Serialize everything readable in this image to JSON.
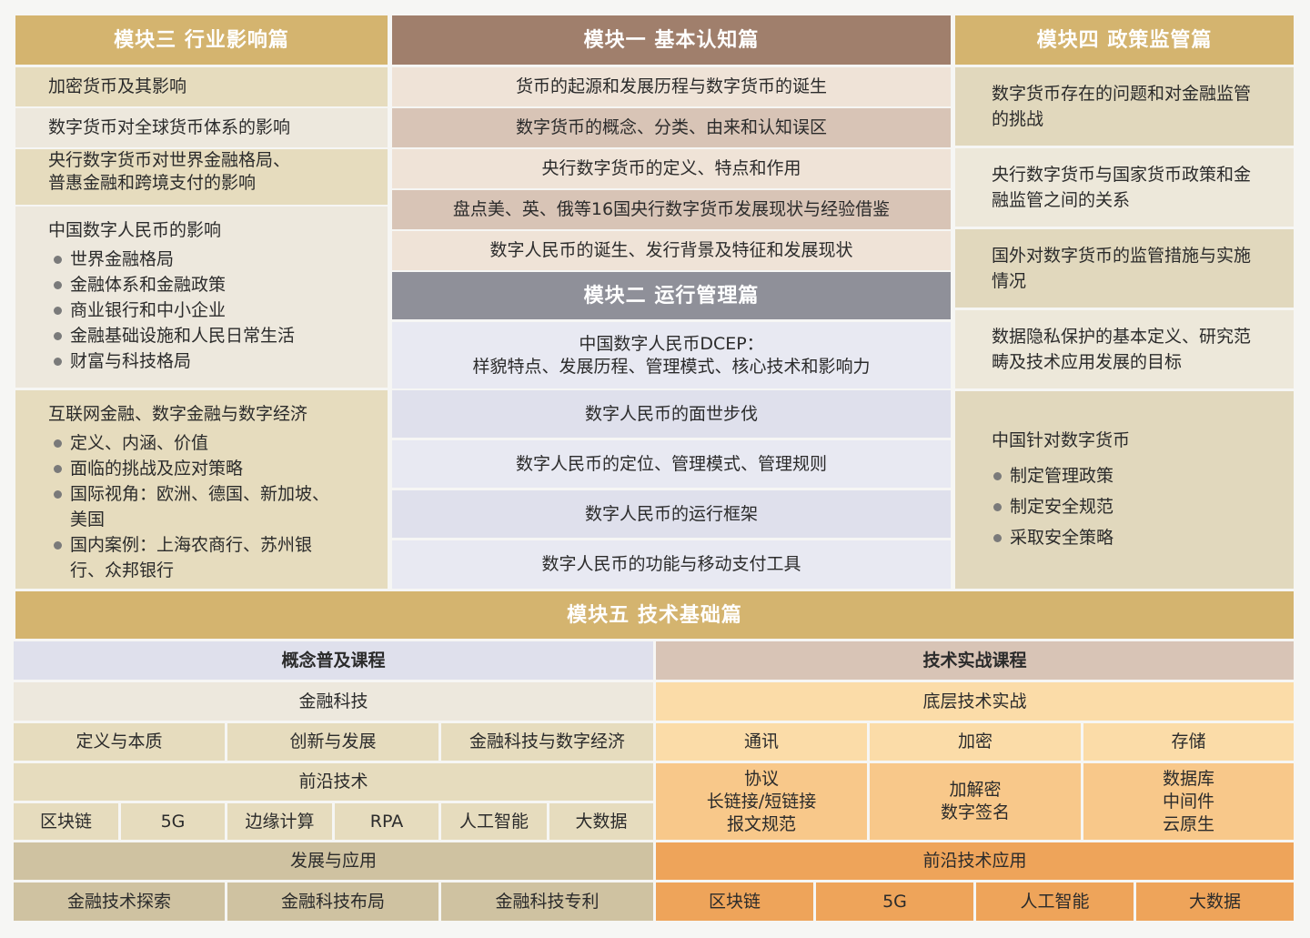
{
  "colors": {
    "gold_header": "#d4b46f",
    "brown_header": "#a07f6c",
    "gray_header": "#8f9099",
    "beige_a": "#e6dcbe",
    "beige_b": "#ede8dd",
    "pink_a": "#efe3d7",
    "pink_b": "#d8c4b6",
    "lavender_a": "#dfe0ec",
    "lavender_b": "#e8e9f2",
    "right_a": "#e1d8bd",
    "right_b": "#ede8da",
    "tan_dark": "#cfc2a1",
    "peach_light": "#fbdca8",
    "peach_mid": "#f8c88a",
    "orange": "#eea45a"
  },
  "module3": {
    "title": "模块三 行业影响篇",
    "items": [
      "加密货币及其影响",
      "数字货币对全球货币体系的影响",
      "央行数字货币对世界金融格局、",
      "普惠金融和跨境支付的影响"
    ],
    "block1": {
      "title": "中国数字人民币的影响",
      "bullets": [
        "世界金融格局",
        "金融体系和金融政策",
        "商业银行和中小企业",
        "金融基础设施和人民日常生活",
        "财富与科技格局"
      ]
    },
    "block2": {
      "title": "互联网金融、数字金融与数字经济",
      "bullets": [
        "定义、内涵、价值",
        "面临的挑战及应对策略",
        "国际视角：欧洲、德国、新加坡、美国",
        "国内案例：上海农商行、苏州银行、众邦银行"
      ]
    }
  },
  "module1": {
    "title": "模块一 基本认知篇",
    "items": [
      "货币的起源和发展历程与数字货币的诞生",
      "数字货币的概念、分类、由来和认知误区",
      "央行数字货币的定义、特点和作用",
      "盘点美、英、俄等16国央行数字货币发展现状与经验借鉴",
      "数字人民币的诞生、发行背景及特征和发展现状"
    ]
  },
  "module2": {
    "title": "模块二 运行管理篇",
    "items": [
      "中国数字人民币DCEP：",
      "样貌特点、发展历程、管理模式、核心技术和影响力",
      "数字人民币的面世步伐",
      "数字人民币的定位、管理模式、管理规则",
      "数字人民币的运行框架",
      "数字人民币的功能与移动支付工具"
    ]
  },
  "module4": {
    "title": "模块四 政策监管篇",
    "items": [
      "数字货币存在的问题和对金融监管的挑战",
      "央行数字货币与国家货币政策和金融监管之间的关系",
      "国外对数字货币的监管措施与实施情况",
      "数据隐私保护的基本定义、研究范畴及技术应用发展的目标"
    ],
    "block": {
      "title": "中国针对数字货币",
      "bullets": [
        "制定管理政策",
        "制定安全规范",
        "采取安全策略"
      ]
    }
  },
  "module5": {
    "title": "模块五 技术基础篇",
    "concept": {
      "title": "概念普及课程",
      "fintech": "金融科技",
      "fintech_items": [
        "定义与本质",
        "创新与发展",
        "金融科技与数字经济"
      ],
      "frontier": "前沿技术",
      "frontier_items": [
        "区块链",
        "5G",
        "边缘计算",
        "RPA",
        "人工智能",
        "大数据"
      ],
      "dev": "发展与应用",
      "dev_items": [
        "金融技术探索",
        "金融科技布局",
        "金融科技专利"
      ]
    },
    "practice": {
      "title": "技术实战课程",
      "base": "底层技术实战",
      "base_items": [
        "通讯",
        "加密",
        "存储"
      ],
      "sub1": [
        "协议",
        "长链接/短链接",
        "报文规范"
      ],
      "sub2": [
        "加解密",
        "数字签名"
      ],
      "sub3": [
        "数据库",
        "中间件",
        "云原生"
      ],
      "frontier_app": "前沿技术应用",
      "frontier_app_items": [
        "区块链",
        "5G",
        "人工智能",
        "大数据"
      ]
    }
  }
}
